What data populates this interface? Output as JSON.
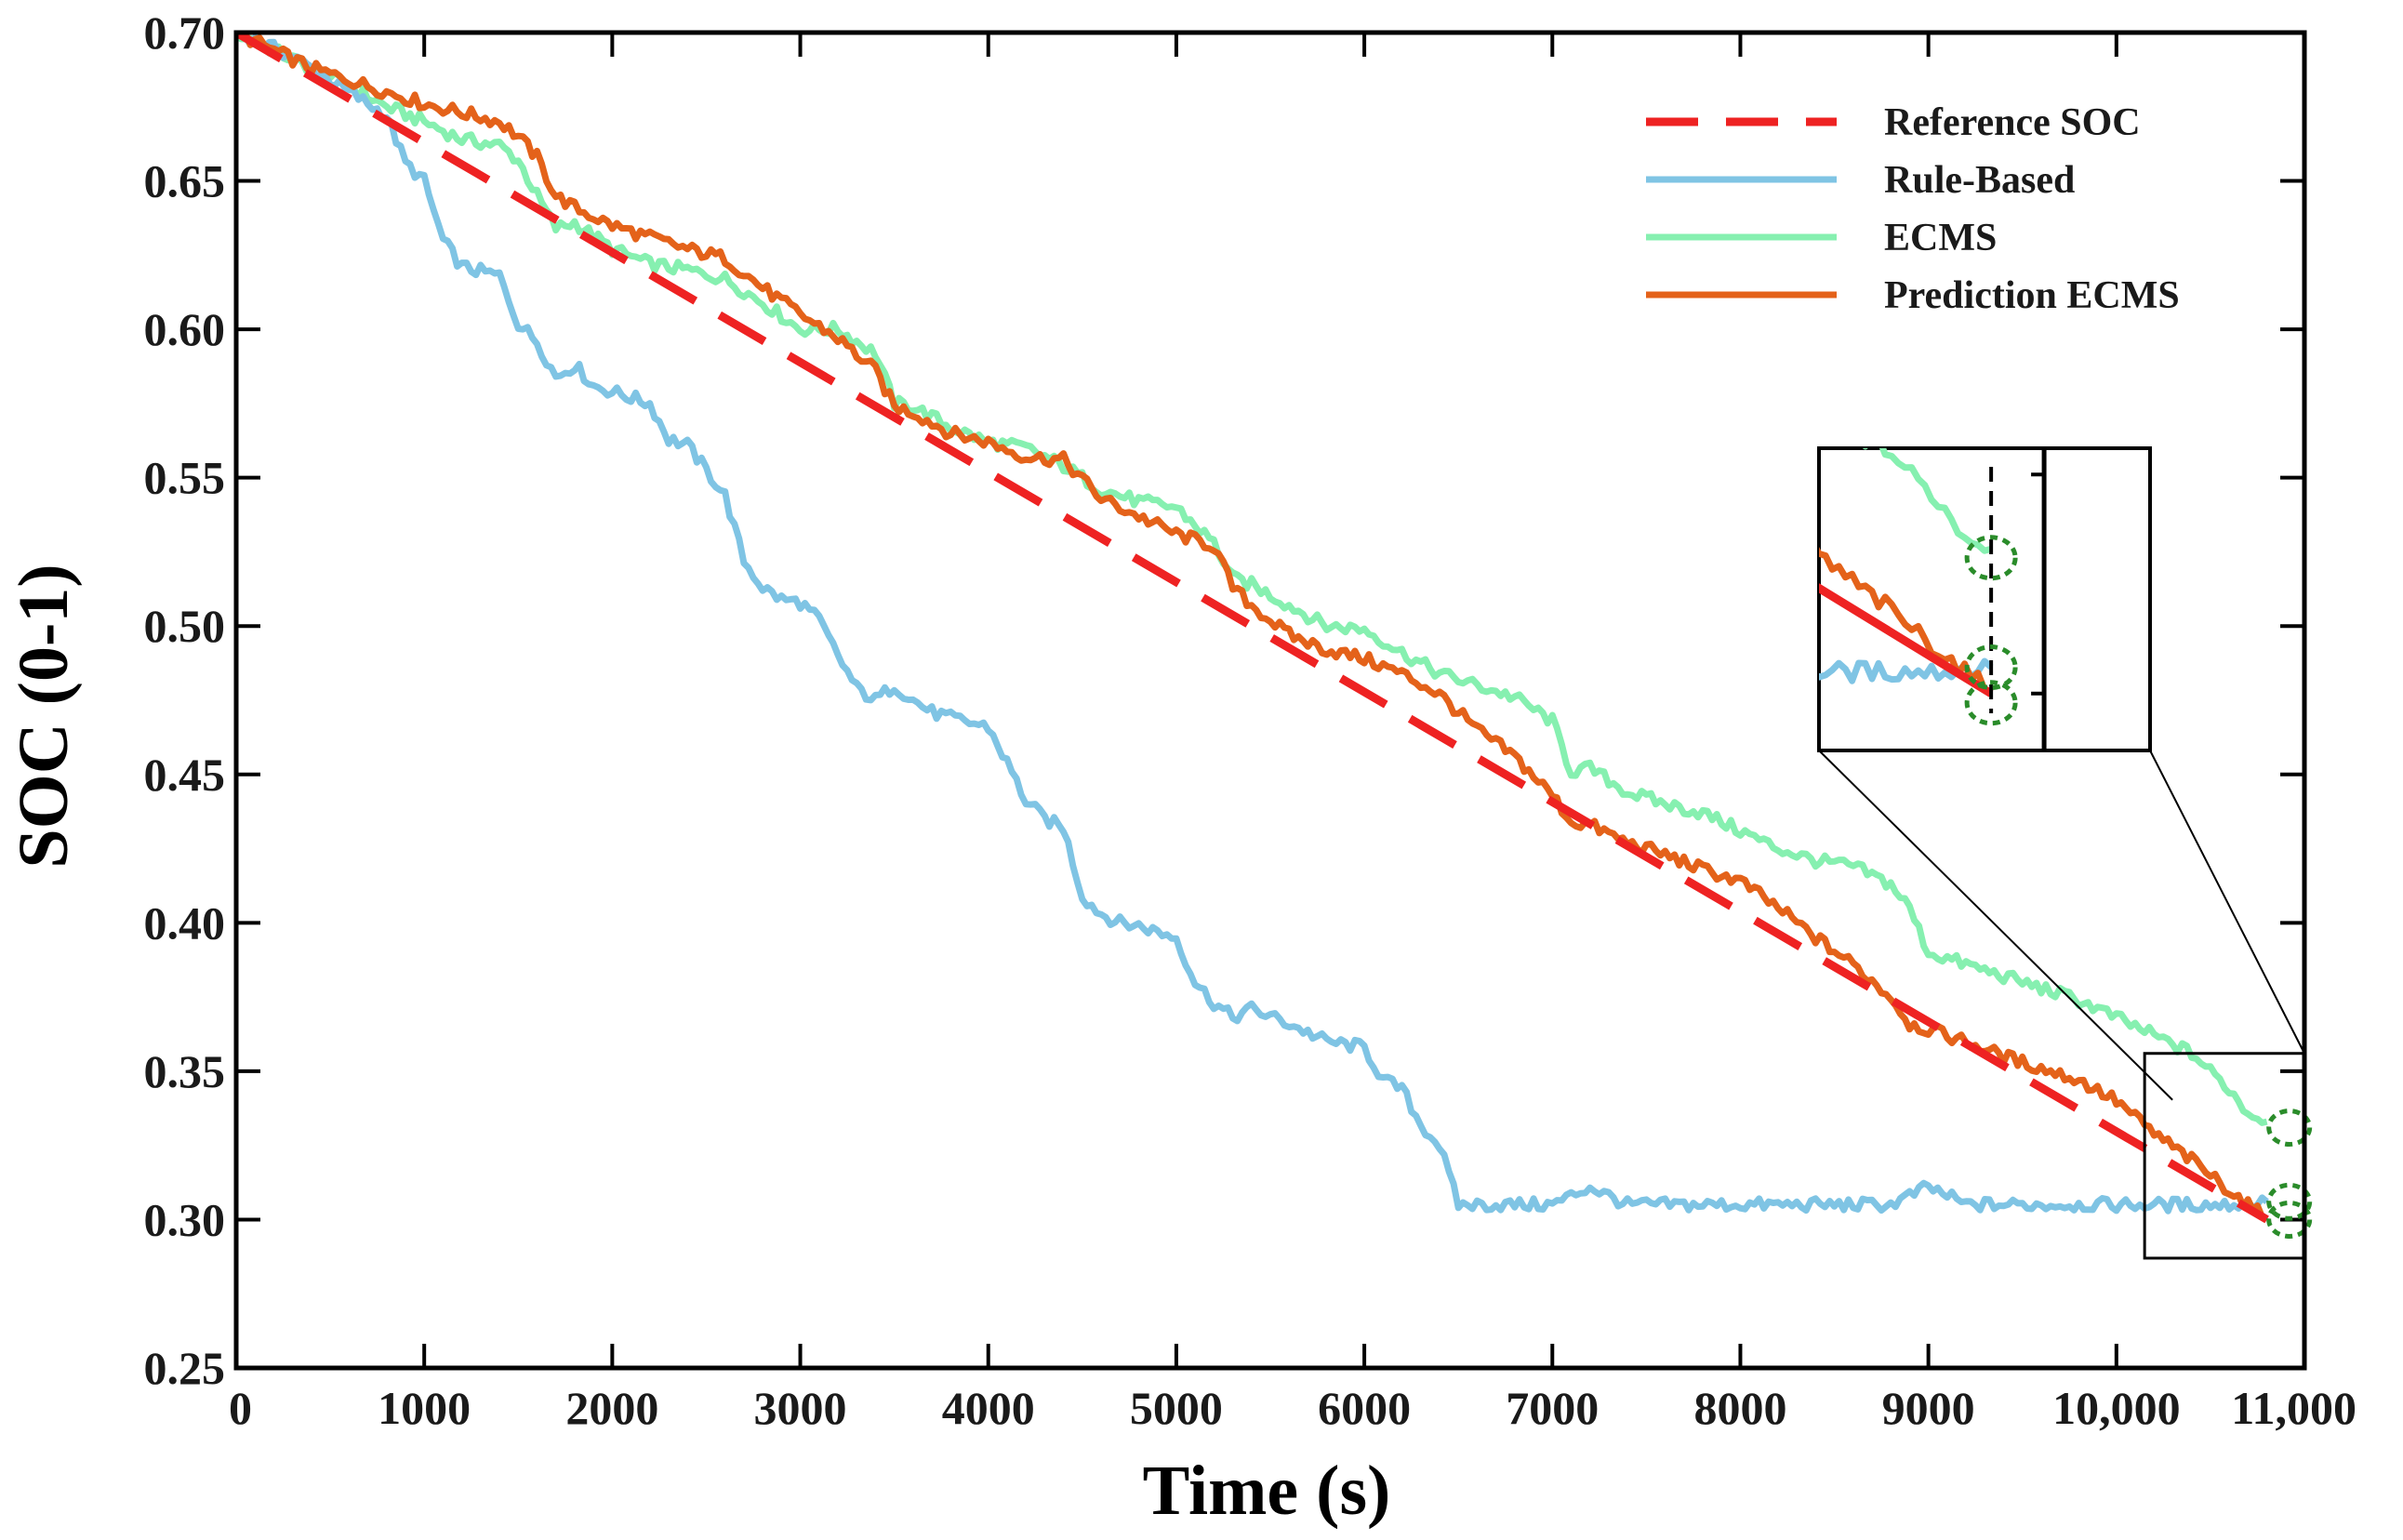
{
  "chart_data": {
    "type": "line",
    "title": "",
    "xlabel": "Time (s)",
    "ylabel": "SOC (0-1)",
    "xlim": [
      0,
      11000
    ],
    "ylim": [
      0.25,
      0.7
    ],
    "x_ticks": [
      0,
      1000,
      2000,
      3000,
      4000,
      5000,
      6000,
      7000,
      8000,
      9000,
      10000,
      11000
    ],
    "x_tick_labels": [
      "0",
      "1000",
      "2000",
      "3000",
      "4000",
      "5000",
      "6000",
      "7000",
      "8000",
      "9000",
      "10,000",
      "11,000"
    ],
    "y_ticks": [
      0.25,
      0.3,
      0.35,
      0.4,
      0.45,
      0.5,
      0.55,
      0.6,
      0.65,
      0.7
    ],
    "y_tick_labels": [
      "0.25",
      "0.30",
      "0.35",
      "0.40",
      "0.45",
      "0.50",
      "0.55",
      "0.60",
      "0.65",
      "0.70"
    ],
    "grid": false,
    "legend_position": "top-right",
    "series": [
      {
        "name": "Reference SOC",
        "color": "#ee2222",
        "style": "dashed",
        "x": [
          0,
          10800
        ],
        "y": [
          0.7,
          0.3
        ]
      },
      {
        "name": "Rule-Based",
        "color": "#7fc4e4",
        "style": "solid",
        "x": [
          0,
          300,
          600,
          800,
          900,
          1000,
          1100,
          1200,
          1400,
          1500,
          1600,
          1700,
          1800,
          1900,
          2000,
          2200,
          2300,
          2400,
          2600,
          2700,
          2800,
          2900,
          3000,
          3100,
          3200,
          3300,
          3400,
          3500,
          3600,
          3700,
          3800,
          4000,
          4100,
          4200,
          4300,
          4400,
          4500,
          4600,
          4700,
          4800,
          5000,
          5100,
          5200,
          5300,
          5400,
          5600,
          5800,
          6000,
          6100,
          6200,
          6300,
          6400,
          6500,
          6600,
          6800,
          7000,
          7200,
          7400,
          7600,
          7800,
          8000,
          8200,
          8400,
          8600,
          8800,
          9000,
          9200,
          9400,
          9600,
          9800,
          10000,
          10200,
          10400,
          10600,
          10800
        ],
        "y": [
          0.7,
          0.692,
          0.68,
          0.672,
          0.656,
          0.65,
          0.63,
          0.621,
          0.618,
          0.602,
          0.596,
          0.584,
          0.588,
          0.581,
          0.579,
          0.575,
          0.563,
          0.561,
          0.544,
          0.522,
          0.513,
          0.509,
          0.508,
          0.502,
          0.49,
          0.479,
          0.475,
          0.48,
          0.475,
          0.471,
          0.469,
          0.466,
          0.454,
          0.441,
          0.435,
          0.432,
          0.409,
          0.403,
          0.4,
          0.399,
          0.395,
          0.38,
          0.373,
          0.368,
          0.371,
          0.366,
          0.36,
          0.358,
          0.347,
          0.344,
          0.332,
          0.325,
          0.305,
          0.305,
          0.305,
          0.305,
          0.311,
          0.305,
          0.305,
          0.305,
          0.305,
          0.305,
          0.305,
          0.305,
          0.305,
          0.311,
          0.305,
          0.305,
          0.305,
          0.305,
          0.305,
          0.305,
          0.305,
          0.305,
          0.306
        ]
      },
      {
        "name": "ECMS",
        "color": "#86f0b0",
        "style": "solid",
        "x": [
          0,
          200,
          400,
          600,
          800,
          1000,
          1200,
          1400,
          1500,
          1600,
          1700,
          1800,
          2000,
          2200,
          2400,
          2600,
          2800,
          3000,
          3200,
          3400,
          3500,
          3600,
          3800,
          4000,
          4200,
          4400,
          4600,
          4800,
          5000,
          5100,
          5200,
          5300,
          5400,
          5600,
          5800,
          6000,
          6200,
          6400,
          6600,
          6800,
          7000,
          7100,
          7200,
          7400,
          7600,
          7800,
          8000,
          8200,
          8400,
          8600,
          8800,
          8900,
          9000,
          9200,
          9400,
          9600,
          9800,
          10000,
          10200,
          10400,
          10500,
          10600,
          10700,
          10800
        ],
        "y": [
          0.7,
          0.694,
          0.688,
          0.682,
          0.675,
          0.67,
          0.664,
          0.662,
          0.657,
          0.645,
          0.634,
          0.636,
          0.627,
          0.622,
          0.62,
          0.617,
          0.609,
          0.6,
          0.6,
          0.592,
          0.575,
          0.574,
          0.567,
          0.562,
          0.56,
          0.554,
          0.546,
          0.542,
          0.54,
          0.534,
          0.528,
          0.516,
          0.514,
          0.507,
          0.5,
          0.499,
          0.491,
          0.484,
          0.48,
          0.476,
          0.468,
          0.451,
          0.452,
          0.444,
          0.44,
          0.437,
          0.431,
          0.425,
          0.421,
          0.419,
          0.413,
          0.405,
          0.39,
          0.386,
          0.382,
          0.378,
          0.374,
          0.368,
          0.362,
          0.356,
          0.35,
          0.344,
          0.336,
          0.333
        ]
      },
      {
        "name": "Prediction ECMS",
        "color": "#e4621a",
        "style": "solid",
        "x": [
          0,
          200,
          400,
          600,
          800,
          1000,
          1200,
          1400,
          1500,
          1600,
          1700,
          1800,
          2000,
          2200,
          2400,
          2600,
          2800,
          3000,
          3200,
          3400,
          3500,
          3600,
          3800,
          4000,
          4200,
          4400,
          4600,
          4800,
          5000,
          5200,
          5300,
          5400,
          5600,
          5800,
          6000,
          6200,
          6400,
          6600,
          6800,
          7000,
          7100,
          7200,
          7400,
          7600,
          7800,
          8000,
          8200,
          8400,
          8600,
          8800,
          8900,
          9000,
          9200,
          9400,
          9600,
          9800,
          10000,
          10200,
          10400,
          10600,
          10800
        ],
        "y": [
          0.7,
          0.694,
          0.688,
          0.684,
          0.68,
          0.676,
          0.673,
          0.67,
          0.665,
          0.658,
          0.645,
          0.641,
          0.635,
          0.631,
          0.627,
          0.624,
          0.614,
          0.605,
          0.597,
          0.586,
          0.574,
          0.572,
          0.565,
          0.562,
          0.557,
          0.556,
          0.543,
          0.537,
          0.531,
          0.527,
          0.513,
          0.507,
          0.497,
          0.492,
          0.489,
          0.484,
          0.477,
          0.465,
          0.456,
          0.443,
          0.434,
          0.433,
          0.427,
          0.423,
          0.418,
          0.414,
          0.405,
          0.395,
          0.386,
          0.375,
          0.366,
          0.364,
          0.36,
          0.355,
          0.351,
          0.347,
          0.34,
          0.329,
          0.32,
          0.31,
          0.3
        ]
      }
    ],
    "annotations": [
      {
        "type": "zoom-box",
        "target": "end-of-cycle detail",
        "xrange": [
          10150,
          11000
        ],
        "yrange": [
          0.287,
          0.356
        ]
      },
      {
        "type": "circle-marker",
        "color": "#2a8c2a",
        "style": "dashed",
        "x": 10860,
        "y": 0.331
      },
      {
        "type": "circle-marker",
        "color": "#2a8c2a",
        "style": "dashed",
        "x": 10860,
        "y": 0.306
      },
      {
        "type": "circle-marker",
        "color": "#2a8c2a",
        "style": "dashed",
        "x": 10860,
        "y": 0.3
      }
    ]
  }
}
